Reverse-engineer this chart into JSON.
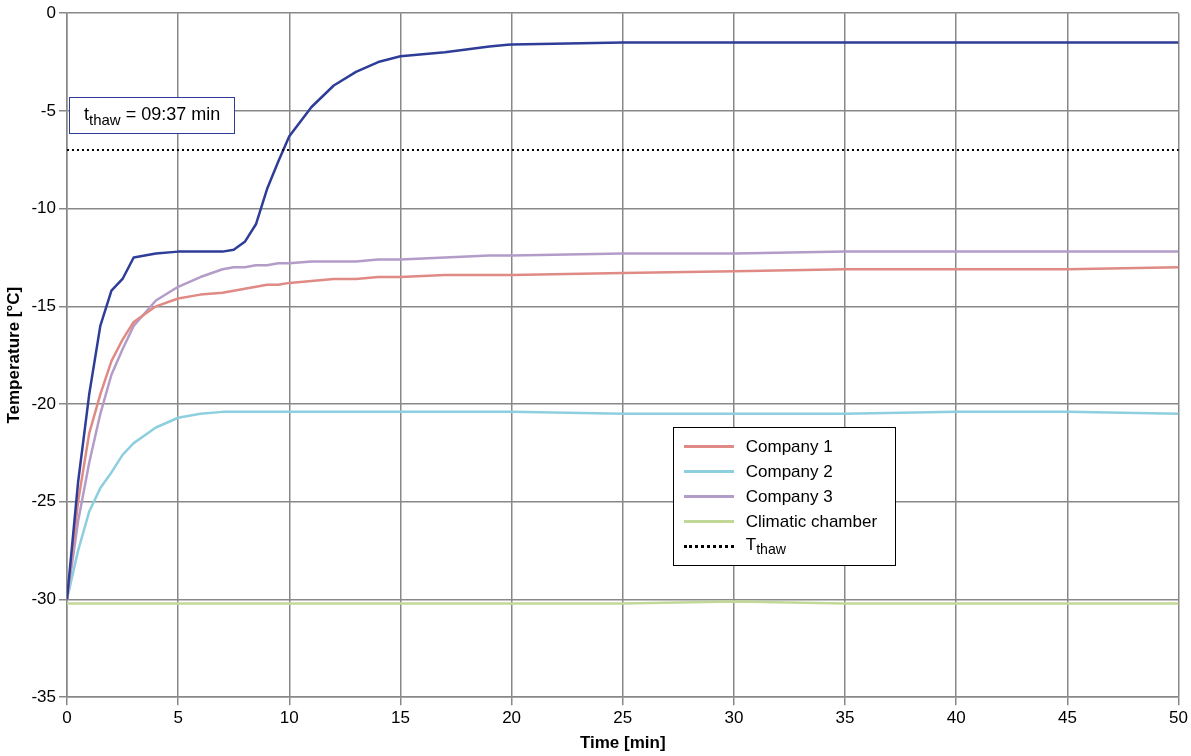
{
  "chart_data": {
    "type": "line",
    "xlabel": "Time [min]",
    "ylabel": "Temperature [°C]",
    "x": [
      0,
      0.5,
      1,
      1.5,
      2,
      2.5,
      3,
      4,
      5,
      6,
      7,
      7.5,
      8,
      8.5,
      9,
      9.5,
      10,
      11,
      12,
      13,
      14,
      15,
      17,
      19,
      20,
      25,
      30,
      35,
      40,
      45,
      50
    ],
    "series": [
      {
        "color": "#2e3d98",
        "values": [
          -30,
          -24,
          -19.5,
          -16,
          -14.2,
          -13.6,
          -12.5,
          -12.3,
          -12.2,
          -12.2,
          -12.2,
          -12.1,
          -11.7,
          -10.8,
          -9,
          -7.6,
          -6.3,
          -4.8,
          -3.7,
          -3,
          -2.5,
          -2.2,
          -2,
          -1.7,
          -1.6,
          -1.5,
          -1.5,
          -1.5,
          -1.5,
          -1.5,
          -1.5
        ]
      },
      {
        "name": "Company 1",
        "color": "#e08a86",
        "values": [
          -30,
          -25,
          -21.5,
          -19.5,
          -17.8,
          -16.7,
          -15.8,
          -15,
          -14.6,
          -14.4,
          -14.3,
          -14.2,
          -14.1,
          -14,
          -13.9,
          -13.9,
          -13.8,
          -13.7,
          -13.6,
          -13.6,
          -13.5,
          -13.5,
          -13.4,
          -13.4,
          -13.4,
          -13.3,
          -13.2,
          -13.1,
          -13.1,
          -13.1,
          -13
        ]
      },
      {
        "name": "Company 2",
        "color": "#8ecfdf",
        "values": [
          -30,
          -27.5,
          -25.5,
          -24.3,
          -23.5,
          -22.6,
          -22,
          -21.2,
          -20.7,
          -20.5,
          -20.4,
          -20.4,
          -20.4,
          -20.4,
          -20.4,
          -20.4,
          -20.4,
          -20.4,
          -20.4,
          -20.4,
          -20.4,
          -20.4,
          -20.4,
          -20.4,
          -20.4,
          -20.5,
          -20.5,
          -20.5,
          -20.4,
          -20.4,
          -20.5
        ]
      },
      {
        "name": "Company 3",
        "color": "#b49cc9",
        "values": [
          -30,
          -26,
          -23,
          -20.5,
          -18.5,
          -17.2,
          -16,
          -14.7,
          -14,
          -13.5,
          -13.1,
          -13,
          -13,
          -12.9,
          -12.9,
          -12.8,
          -12.8,
          -12.7,
          -12.7,
          -12.7,
          -12.6,
          -12.6,
          -12.5,
          -12.4,
          -12.4,
          -12.3,
          -12.3,
          -12.2,
          -12.2,
          -12.2,
          -12.2
        ]
      },
      {
        "name": "Climatic chamber",
        "color": "#c2d896",
        "values": [
          -30.2,
          -30.2,
          -30.2,
          -30.2,
          -30.2,
          -30.2,
          -30.2,
          -30.2,
          -30.2,
          -30.2,
          -30.2,
          -30.2,
          -30.2,
          -30.2,
          -30.2,
          -30.2,
          -30.2,
          -30.2,
          -30.2,
          -30.2,
          -30.2,
          -30.2,
          -30.2,
          -30.2,
          -30.2,
          -30.2,
          -30.1,
          -30.2,
          -30.2,
          -30.2,
          -30.2
        ]
      }
    ],
    "xlim": [
      0,
      50
    ],
    "xticks": [
      0,
      5,
      10,
      15,
      20,
      25,
      30,
      35,
      40,
      45,
      50
    ],
    "ylim": [
      -35,
      0
    ],
    "yticks": [
      -35,
      -30,
      -25,
      -20,
      -15,
      -10,
      -5,
      0
    ],
    "ref_lines": [
      {
        "axis": "y",
        "value": -7,
        "label": "T$_{thaw}$",
        "color": "#000000",
        "line_style": "dotted"
      }
    ],
    "annotations": [
      "t$_{thaw}$ = 09:37 min"
    ],
    "grid": true,
    "legend": "bottom right",
    "marker": "none",
    "line_style": "solid"
  }
}
